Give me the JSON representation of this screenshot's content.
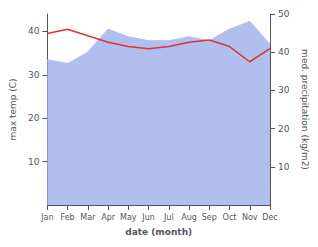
{
  "chart_data": {
    "type": "line",
    "xlabel": "date (month)",
    "ylabel": "max temp (C)",
    "y2label": "med. precipitation (kg/m2)",
    "categories": [
      "Jan",
      "Feb",
      "Mar",
      "Apr",
      "May",
      "Jun",
      "Jul",
      "Aug",
      "Sep",
      "Oct",
      "Nov",
      "Dec"
    ],
    "series": [
      {
        "type": "area",
        "color": "#b0bfee",
        "axis": "y2",
        "values": [
          38,
          37,
          40,
          46,
          44,
          43,
          43,
          44,
          43,
          46,
          48,
          42
        ]
      },
      {
        "type": "line",
        "color": "#dd3333",
        "values": [
          39.5,
          40.5,
          39.0,
          37.5,
          36.5,
          36.0,
          36.5,
          37.5,
          38.0,
          36.5,
          33.0,
          36.0
        ]
      }
    ],
    "ylim": [
      0,
      44
    ],
    "yticks": [
      10,
      20,
      30,
      40
    ],
    "y2lim": [
      0,
      50
    ],
    "y2ticks": [
      10,
      20,
      30,
      40,
      50
    ],
    "grid": false
  }
}
